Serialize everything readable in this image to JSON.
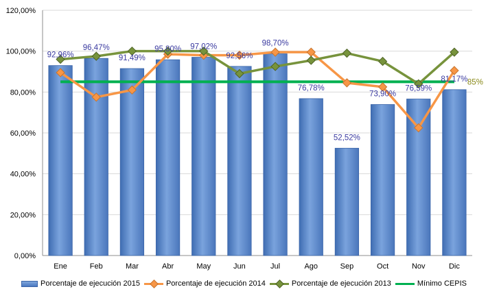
{
  "chart_data": {
    "type": "bar",
    "categories": [
      "Ene",
      "Feb",
      "Mar",
      "Abr",
      "May",
      "Jun",
      "Jul",
      "Ago",
      "Sep",
      "Oct",
      "Nov",
      "Dic"
    ],
    "ylim": [
      0,
      120
    ],
    "yticks": [
      "0,00%",
      "20,00%",
      "40,00%",
      "60,00%",
      "80,00%",
      "100,00%",
      "120,00%"
    ],
    "grid": true,
    "legend_position": "bottom",
    "series": [
      {
        "name": "Porcentaje de ejecución 2015",
        "kind": "bar",
        "color": "#4f81bd",
        "values": [
          92.96,
          96.47,
          91.49,
          95.8,
          97.02,
          92.56,
          98.7,
          76.78,
          52.52,
          73.9,
          76.59,
          81.17
        ],
        "labels": [
          "92,96%",
          "96,47%",
          "91,49%",
          "95,80%",
          "97,02%",
          "92,56%",
          "98,70%",
          "76,78%",
          "52,52%",
          "73,90%",
          "76,59%",
          "81,17%"
        ]
      },
      {
        "name": "Porcentaje de ejecución 2014",
        "kind": "line",
        "color": "#f79646",
        "values": [
          89.5,
          77.5,
          81.0,
          98.5,
          98.0,
          98.0,
          99.5,
          99.5,
          84.5,
          82.5,
          62.5,
          90.5
        ]
      },
      {
        "name": "Porcentaje de ejecución 2013",
        "kind": "line",
        "color": "#77933c",
        "values": [
          96.0,
          97.5,
          100.0,
          100.0,
          100.0,
          89.0,
          92.5,
          95.5,
          99.0,
          95.0,
          84.0,
          99.5
        ]
      },
      {
        "name": "Mínimo CEPIS",
        "kind": "reference",
        "color": "#00b050",
        "value": 85,
        "label": "85%"
      }
    ]
  }
}
